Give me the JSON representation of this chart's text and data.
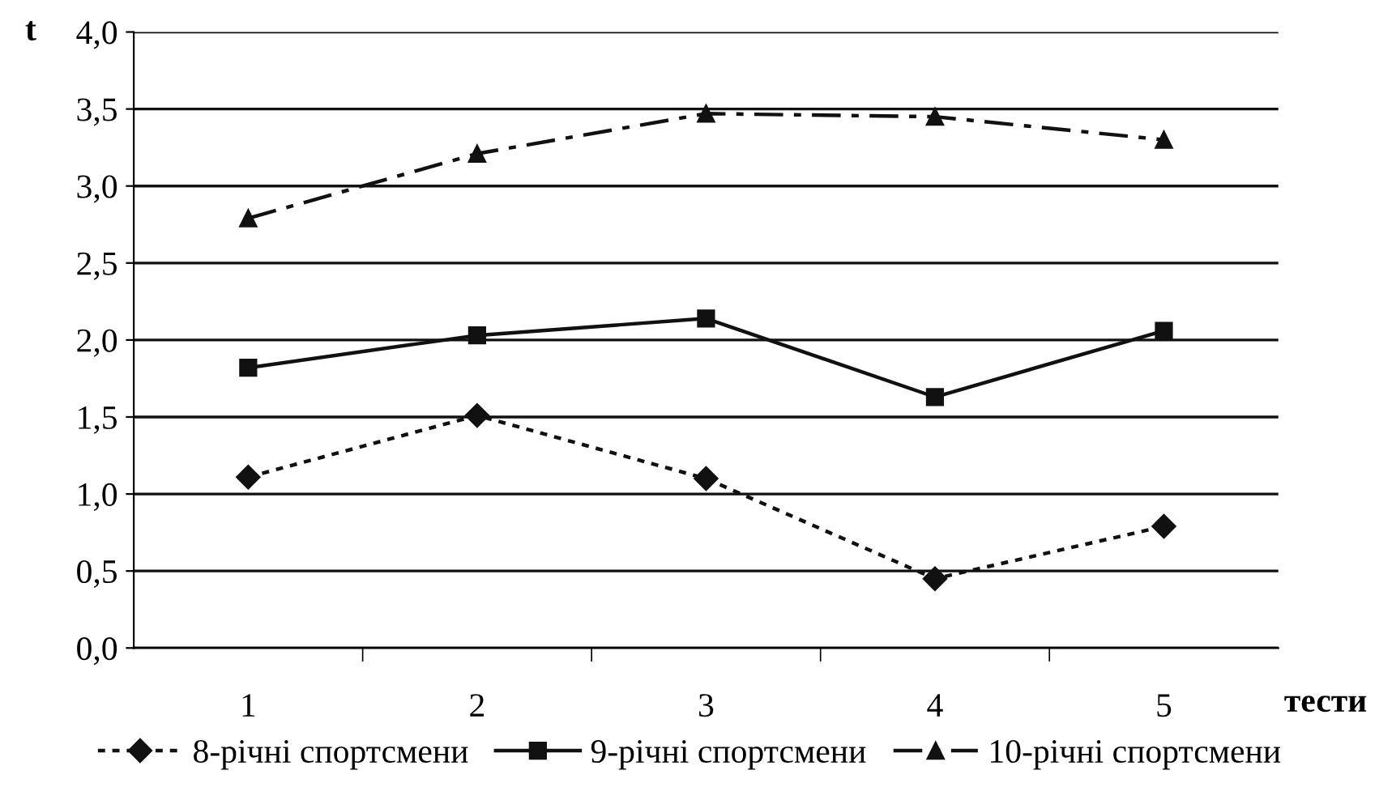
{
  "chart_data": {
    "type": "line",
    "xlabel": "тести",
    "ylabel": "t",
    "categories": [
      "1",
      "2",
      "3",
      "4",
      "5"
    ],
    "series": [
      {
        "name": "8-річні спортсмени",
        "color": "#111111",
        "marker": "diamond",
        "line_style": "dotted",
        "values": [
          1.11,
          1.51,
          1.1,
          0.45,
          0.79
        ]
      },
      {
        "name": "9-річні спортсмени",
        "color": "#111111",
        "marker": "square",
        "line_style": "solid",
        "values": [
          1.82,
          2.03,
          2.14,
          1.63,
          2.06
        ]
      },
      {
        "name": "10-річні спортсмени",
        "color": "#111111",
        "marker": "triangle",
        "line_style": "dashed",
        "values": [
          2.79,
          3.21,
          3.47,
          3.45,
          3.3
        ]
      }
    ],
    "ylim": [
      0,
      4
    ],
    "yticks": [
      {
        "value": 0,
        "label": "0,0"
      },
      {
        "value": 0.5,
        "label": "0,5"
      },
      {
        "value": 1,
        "label": "1,0"
      },
      {
        "value": 1.5,
        "label": "1,5"
      },
      {
        "value": 2,
        "label": "2,0"
      },
      {
        "value": 2.5,
        "label": "2,5"
      },
      {
        "value": 3,
        "label": "3,0"
      },
      {
        "value": 3.5,
        "label": "3,5"
      },
      {
        "value": 4,
        "label": "4,0"
      }
    ],
    "grid": "y",
    "legend": "bottom"
  }
}
